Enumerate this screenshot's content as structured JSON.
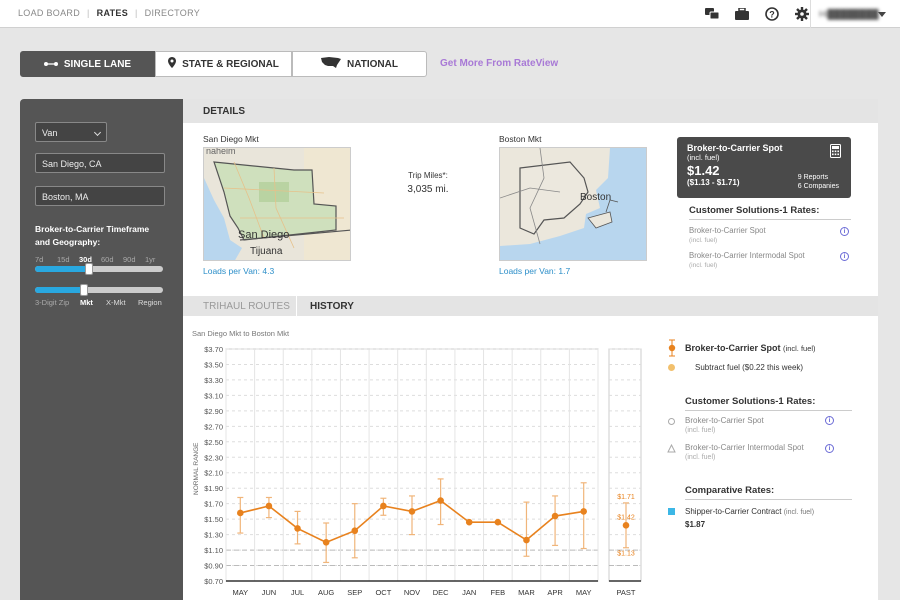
{
  "topnav": {
    "items": [
      "LOAD BOARD",
      "RATES",
      "DIRECTORY"
    ],
    "active": "RATES",
    "user": "Hi████████"
  },
  "modes": {
    "single_lane": "SINGLE LANE",
    "state_regional": "STATE & REGIONAL",
    "national": "NATIONAL",
    "rateview_link": "Get More From RateView"
  },
  "sidebar": {
    "equipment": "Van",
    "origin": "San Diego, CA",
    "destination": "Boston, MA",
    "timeframe_label": "Broker-to-Carrier Timeframe and Geography:",
    "timeframe_ticks": [
      "7d",
      "15d",
      "30d",
      "60d",
      "90d",
      "1yr"
    ],
    "timeframe_selected": "30d",
    "timeframe_level": 0.42,
    "geo_ticks": [
      "3-Digit Zip",
      "Mkt",
      "X-Mkt",
      "Region"
    ],
    "geo_selected": "Mkt",
    "geo_level": 0.38
  },
  "details": {
    "header": "DETAILS",
    "origin_mkt": "San Diego Mkt",
    "dest_mkt": "Boston Mkt",
    "origin_map_labels": [
      "San Diego",
      "Tijuana"
    ],
    "dest_map_labels": [
      "Boston"
    ],
    "trip_miles_label": "Trip Miles*:",
    "trip_miles": "3,035 mi.",
    "origin_loads": "Loads per Van:  4.3",
    "dest_loads": "Loads per Van:  1.7"
  },
  "spot": {
    "title": "Broker-to-Carrier Spot",
    "subtitle": "(incl. fuel)",
    "rate": "$1.42",
    "range": "($1.13 - $1.71)",
    "reports": "9 Reports",
    "companies": "6 Companies"
  },
  "customer_rates": {
    "header": "Customer Solutions-1 Rates:",
    "items": [
      {
        "label": "Broker-to-Carrier Spot",
        "sub": "(incl. fuel)"
      },
      {
        "label": "Broker-to-Carrier Intermodal Spot",
        "sub": "(incl. fuel)"
      }
    ]
  },
  "tabs": {
    "trihaul": "TRIHAUL ROUTES",
    "history": "HISTORY"
  },
  "chart_title": "San Diego Mkt to Boston Mkt",
  "chart_data": {
    "type": "line",
    "ylabel": "NORMAL RANGE",
    "categories": [
      "MAY",
      "JUN",
      "JUL",
      "AUG",
      "SEP",
      "OCT",
      "NOV",
      "DEC",
      "JAN",
      "FEB",
      "MAR",
      "APR",
      "MAY"
    ],
    "ylim": [
      0.7,
      3.7
    ],
    "yticks": [
      "$0.70",
      "$0.90",
      "$1.10",
      "$1.30",
      "$1.50",
      "$1.70",
      "$1.90",
      "$2.10",
      "$2.30",
      "$2.50",
      "$2.70",
      "$2.90",
      "$3.10",
      "$3.30",
      "$3.50",
      "$3.70"
    ],
    "series": [
      {
        "name": "Broker-to-Carrier Spot",
        "values": [
          1.58,
          1.67,
          1.38,
          1.2,
          1.35,
          1.67,
          1.6,
          1.74,
          1.46,
          1.46,
          1.23,
          1.54,
          1.6
        ],
        "low": [
          1.32,
          1.52,
          1.18,
          0.94,
          1.0,
          1.55,
          1.3,
          1.43,
          1.46,
          1.46,
          1.02,
          1.16,
          1.12
        ],
        "high": [
          1.78,
          1.78,
          1.6,
          1.45,
          1.7,
          1.77,
          1.8,
          2.02,
          1.46,
          1.46,
          1.72,
          1.8,
          1.97
        ],
        "color": "#e8821e"
      }
    ],
    "past": {
      "label": "PAST",
      "value": 1.42,
      "low": 1.13,
      "high": 1.71,
      "value_label": "$1.42",
      "low_label": "$1.13",
      "high_label": "$1.71"
    },
    "grid": true
  },
  "legend": {
    "spot_label": "Broker-to-Carrier Spot",
    "spot_sub": "(incl. fuel)",
    "subtract_fuel": "Subtract fuel ($0.22 this week)",
    "cs_header": "Customer Solutions-1 Rates:",
    "cs_items": [
      {
        "label": "Broker-to-Carrier Spot",
        "sub": "(incl. fuel)"
      },
      {
        "label": "Broker-to-Carrier Intermodal Spot",
        "sub": "(incl. fuel)"
      }
    ],
    "comparative_header": "Comparative Rates:",
    "contract_label": "Shipper-to-Carrier Contract",
    "contract_sub": "(incl. fuel)",
    "contract_value": "$1.87"
  },
  "colors": {
    "accent": "#e8821e",
    "link": "#2d8fc9",
    "rateview": "#a879d6",
    "slider": "#29a8e0",
    "contract": "#3cb7e6"
  }
}
